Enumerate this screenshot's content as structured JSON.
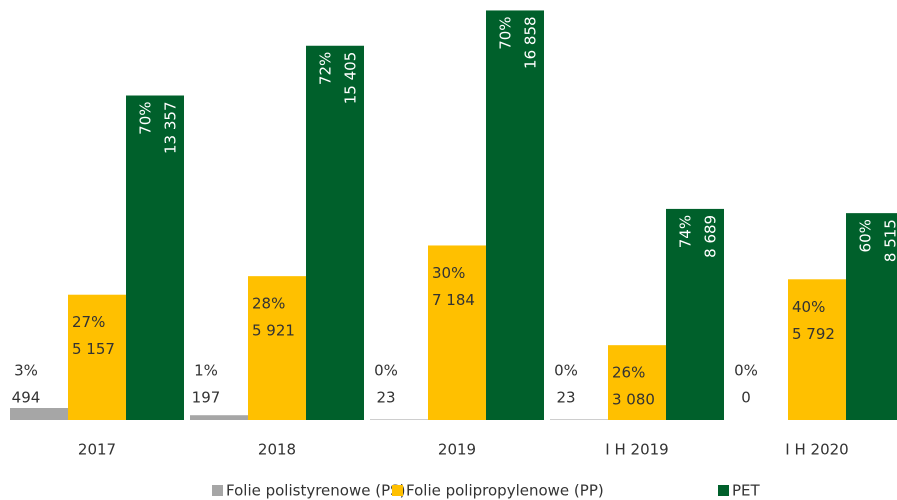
{
  "chart_data": {
    "type": "bar",
    "categories": [
      "2017",
      "2018",
      "2019",
      "I H 2019",
      "I H 2020"
    ],
    "series": [
      {
        "name": "Folie polistyrenowe (PS)",
        "color": "#a6a6a6",
        "values": [
          494,
          197,
          23,
          23,
          0
        ],
        "value_labels": [
          "494",
          "197",
          "23",
          "23",
          "0"
        ],
        "share_labels": [
          "3%",
          "1%",
          "0%",
          "0%",
          "0%"
        ]
      },
      {
        "name": "Folie polipropylenowe (PP)",
        "color": "#ffc000",
        "values": [
          5157,
          5921,
          7184,
          3080,
          5792
        ],
        "value_labels": [
          "5 157",
          "5 921",
          "7 184",
          "3 080",
          "5 792"
        ],
        "share_labels": [
          "27%",
          "28%",
          "30%",
          "26%",
          "40%"
        ]
      },
      {
        "name": "PET",
        "color": "#00602b",
        "values": [
          13357,
          15405,
          16858,
          8689,
          8515
        ],
        "value_labels": [
          "13 357",
          "15 405",
          "16 858",
          "8 689",
          "8 515"
        ],
        "share_labels": [
          "70%",
          "72%",
          "70%",
          "74%",
          "60%"
        ]
      }
    ],
    "ylim": [
      0,
      17000
    ],
    "legend": "bottom"
  }
}
